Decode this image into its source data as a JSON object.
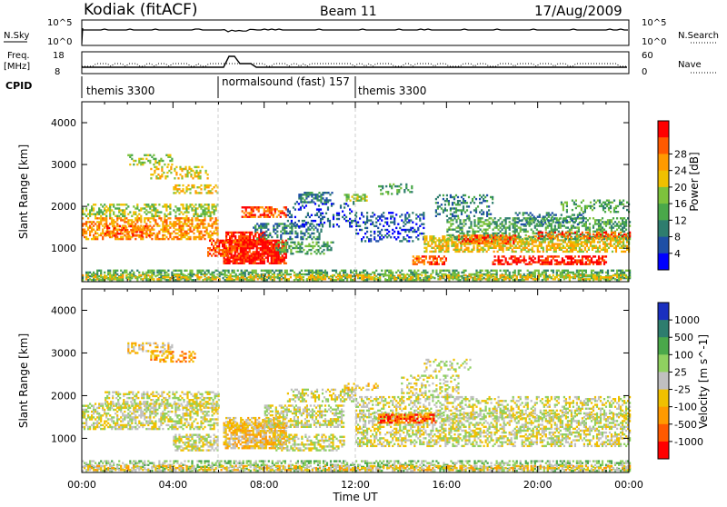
{
  "header": {
    "radar": "Kodiak (fitACF)",
    "beam": "Beam 11",
    "date": "17/Aug/2009"
  },
  "top_panels": {
    "nsky_label": "N.Sky",
    "nsky_ticks": [
      "10^5",
      "10^0"
    ],
    "nsearch_label": "N.Search",
    "nsearch_ticks": [
      "10^5",
      "10^0"
    ],
    "freq_label_1": "Freq.",
    "freq_label_2": "[MHz]",
    "freq_ticks": [
      "18",
      "8"
    ],
    "nave_label": "Nave",
    "nave_ticks": [
      "60",
      "0"
    ],
    "cpid_label": "CPID",
    "cpid_segments": [
      {
        "label": "themis 3300",
        "start_hour": 0
      },
      {
        "label": "normalsound (fast) 157",
        "start_hour": 6
      },
      {
        "label": "themis 3300",
        "start_hour": 12
      }
    ]
  },
  "chart_data": [
    {
      "type": "heatmap",
      "name": "power",
      "ylabel": "Slant Range [km]",
      "yticks": [
        "1000",
        "2000",
        "3000",
        "4000"
      ],
      "ylim": [
        200,
        4500
      ],
      "colorbar_label": "Power [dB]",
      "colorbar_ticks": [
        "4",
        "8",
        "12",
        "16",
        "20",
        "24",
        "28"
      ],
      "colors": [
        "#0000ff",
        "#1e4fa6",
        "#2e7d6e",
        "#4aa84a",
        "#7dc23c",
        "#f0c000",
        "#ff9a00",
        "#ff5a00",
        "#ff0000"
      ]
    },
    {
      "type": "heatmap",
      "name": "velocity",
      "ylabel": "Slant Range [km]",
      "yticks": [
        "1000",
        "2000",
        "3000",
        "4000"
      ],
      "ylim": [
        200,
        4500
      ],
      "colorbar_label": "Velocity [m s^-1]",
      "colorbar_ticks": [
        "1000",
        "500",
        "100",
        "25",
        "-25",
        "-100",
        "-500",
        "-1000"
      ],
      "colors": [
        "#1a2fbf",
        "#2e7d6e",
        "#4aa84a",
        "#8fd060",
        "#c0c0c0",
        "#f0c000",
        "#ff9a00",
        "#ff5a00",
        "#ff0000"
      ]
    }
  ],
  "x_axis": {
    "ticks": [
      "00:00",
      "04:00",
      "08:00",
      "12:00",
      "16:00",
      "20:00",
      "00:00"
    ],
    "label": "Time UT"
  }
}
